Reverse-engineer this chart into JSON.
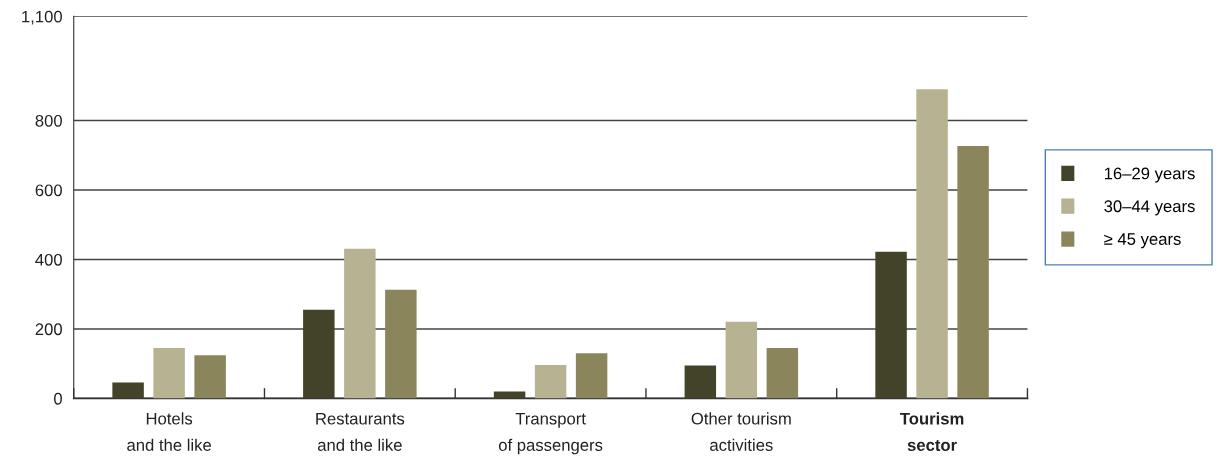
{
  "chart_data": {
    "type": "bar",
    "categories": [
      "Hotels\nand the like",
      "Restaurants\nand the like",
      "Transport\nof passengers",
      "Other tourism\nactivities",
      "Tourism\nsector"
    ],
    "series": [
      {
        "name": "16–29 years",
        "color": "#434329",
        "values": [
          46,
          255,
          20,
          95,
          422
        ]
      },
      {
        "name": "30–44 years",
        "color": "#b7b392",
        "values": [
          145,
          431,
          96,
          221,
          890
        ]
      },
      {
        "name": "≥ 45 years",
        "color": "#8a855b",
        "values": [
          124,
          313,
          130,
          145,
          727
        ]
      }
    ],
    "ylim": [
      0,
      1100
    ],
    "yticks": [
      0,
      200,
      400,
      600,
      800,
      {
        "value": 1100,
        "label": "1,100"
      }
    ],
    "grid": "y",
    "legend": "right"
  }
}
